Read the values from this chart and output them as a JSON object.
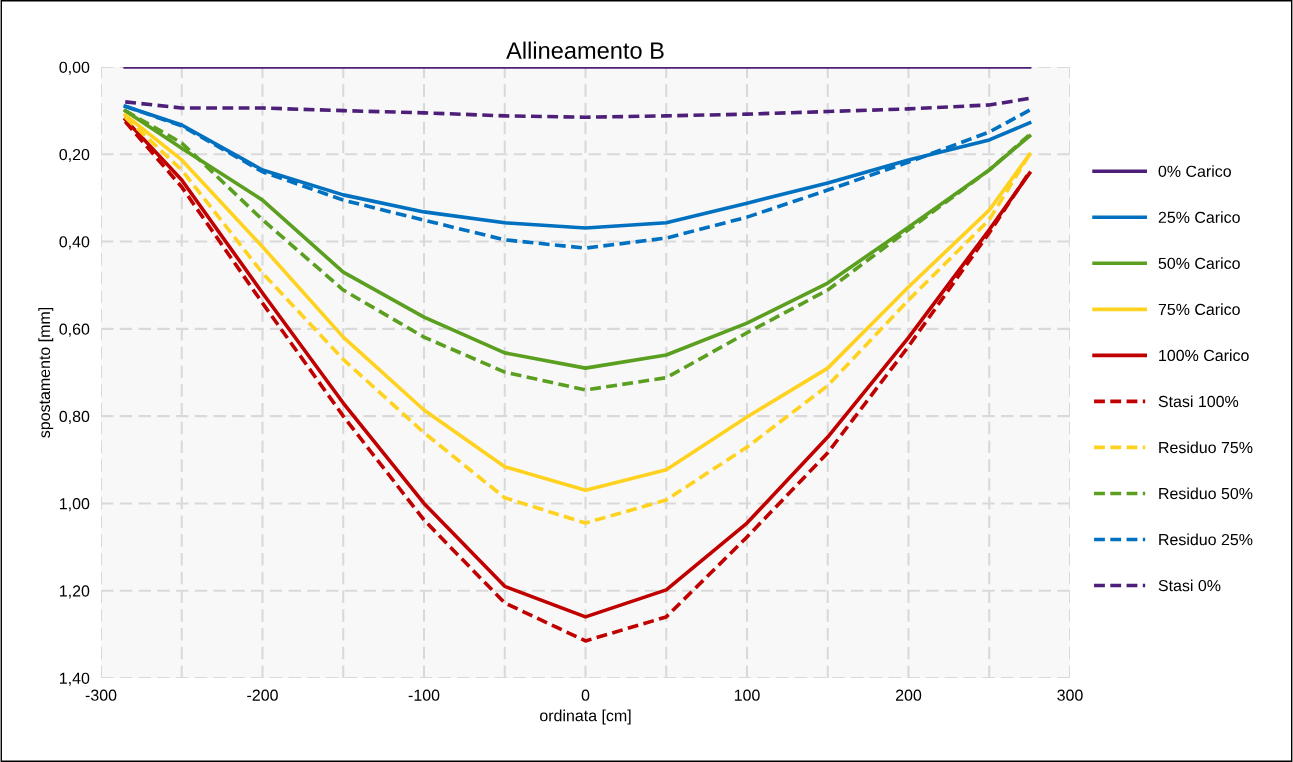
{
  "chart_data": {
    "type": "line",
    "title": "Allineamento B",
    "xlabel": "ordinata [cm]",
    "ylabel": "spostamento [mm]",
    "x": [
      -285,
      -250,
      -200,
      -150,
      -100,
      -50,
      0,
      50,
      100,
      150,
      200,
      250,
      275
    ],
    "series": [
      {
        "name": "0% Carico",
        "color": "#4e1f78",
        "line_style": "solid",
        "values": [
          0,
          0,
          0,
          0,
          0,
          0,
          0,
          0,
          0,
          0,
          0,
          0,
          0
        ]
      },
      {
        "name": "25% Carico",
        "color": "#0070c0",
        "line_style": "solid",
        "values": [
          0.09,
          0.133,
          0.236,
          0.293,
          0.332,
          0.357,
          0.369,
          0.357,
          0.312,
          0.266,
          0.213,
          0.167,
          0.128
        ]
      },
      {
        "name": "50% Carico",
        "color": "#5b9f20",
        "line_style": "solid",
        "values": [
          0.1,
          0.186,
          0.305,
          0.47,
          0.573,
          0.655,
          0.69,
          0.66,
          0.587,
          0.495,
          0.367,
          0.236,
          0.158
        ]
      },
      {
        "name": "75% Carico",
        "color": "#ffd21f",
        "line_style": "solid",
        "values": [
          0.11,
          0.213,
          0.412,
          0.619,
          0.786,
          0.916,
          0.97,
          0.923,
          0.802,
          0.69,
          0.504,
          0.328,
          0.2
        ]
      },
      {
        "name": "100% Carico",
        "color": "#c00000",
        "line_style": "solid",
        "values": [
          0.12,
          0.259,
          0.518,
          0.77,
          1.0,
          1.19,
          1.26,
          1.198,
          1.045,
          0.848,
          0.62,
          0.373,
          0.243
        ]
      },
      {
        "name": "Stasi 100%",
        "color": "#c00000",
        "line_style": "dashed",
        "values": [
          0.125,
          0.275,
          0.541,
          0.8,
          1.038,
          1.228,
          1.315,
          1.26,
          1.077,
          0.884,
          0.64,
          0.38,
          0.24
        ]
      },
      {
        "name": "Residuo 75%",
        "color": "#ffd21f",
        "line_style": "dashed",
        "values": [
          0.115,
          0.236,
          0.472,
          0.67,
          0.838,
          0.987,
          1.045,
          0.992,
          0.871,
          0.73,
          0.534,
          0.35,
          0.2
        ]
      },
      {
        "name": "Residuo 50%",
        "color": "#5b9f20",
        "line_style": "dashed",
        "values": [
          0.1,
          0.174,
          0.35,
          0.511,
          0.619,
          0.699,
          0.74,
          0.712,
          0.609,
          0.511,
          0.373,
          0.236,
          0.155
        ]
      },
      {
        "name": "Residuo 25%",
        "color": "#0070c0",
        "line_style": "dashed",
        "values": [
          0.09,
          0.135,
          0.24,
          0.305,
          0.351,
          0.396,
          0.415,
          0.392,
          0.344,
          0.282,
          0.218,
          0.149,
          0.099
        ]
      },
      {
        "name": "Stasi 0%",
        "color": "#4e1f78",
        "line_style": "dashed",
        "values": [
          0.08,
          0.094,
          0.094,
          0.1,
          0.105,
          0.112,
          0.115,
          0.112,
          0.108,
          0.102,
          0.096,
          0.087,
          0.072
        ]
      }
    ],
    "xlim": [
      -300,
      300
    ],
    "xticks": [
      -300,
      {
        "value": -250,
        "label": null
      },
      -200,
      {
        "value": -150,
        "label": null
      },
      -100,
      {
        "value": -50,
        "label": null
      },
      0,
      {
        "value": 50,
        "label": null
      },
      100,
      {
        "value": 150,
        "label": null
      },
      200,
      {
        "value": 250,
        "label": null
      },
      300
    ],
    "ylim": [
      1.4,
      0
    ],
    "yticks": [
      {
        "value": 0,
        "label": "0,00"
      },
      {
        "value": 0.2,
        "label": "0,20"
      },
      {
        "value": 0.4,
        "label": "0,40"
      },
      {
        "value": 0.6,
        "label": "0,60"
      },
      {
        "value": 0.8,
        "label": "0,80"
      },
      {
        "value": 1.0,
        "label": "1,00"
      },
      {
        "value": 1.2,
        "label": "1,20"
      },
      {
        "value": 1.4,
        "label": "1,40"
      }
    ],
    "grid": true,
    "legend": "right",
    "marker": "none"
  }
}
